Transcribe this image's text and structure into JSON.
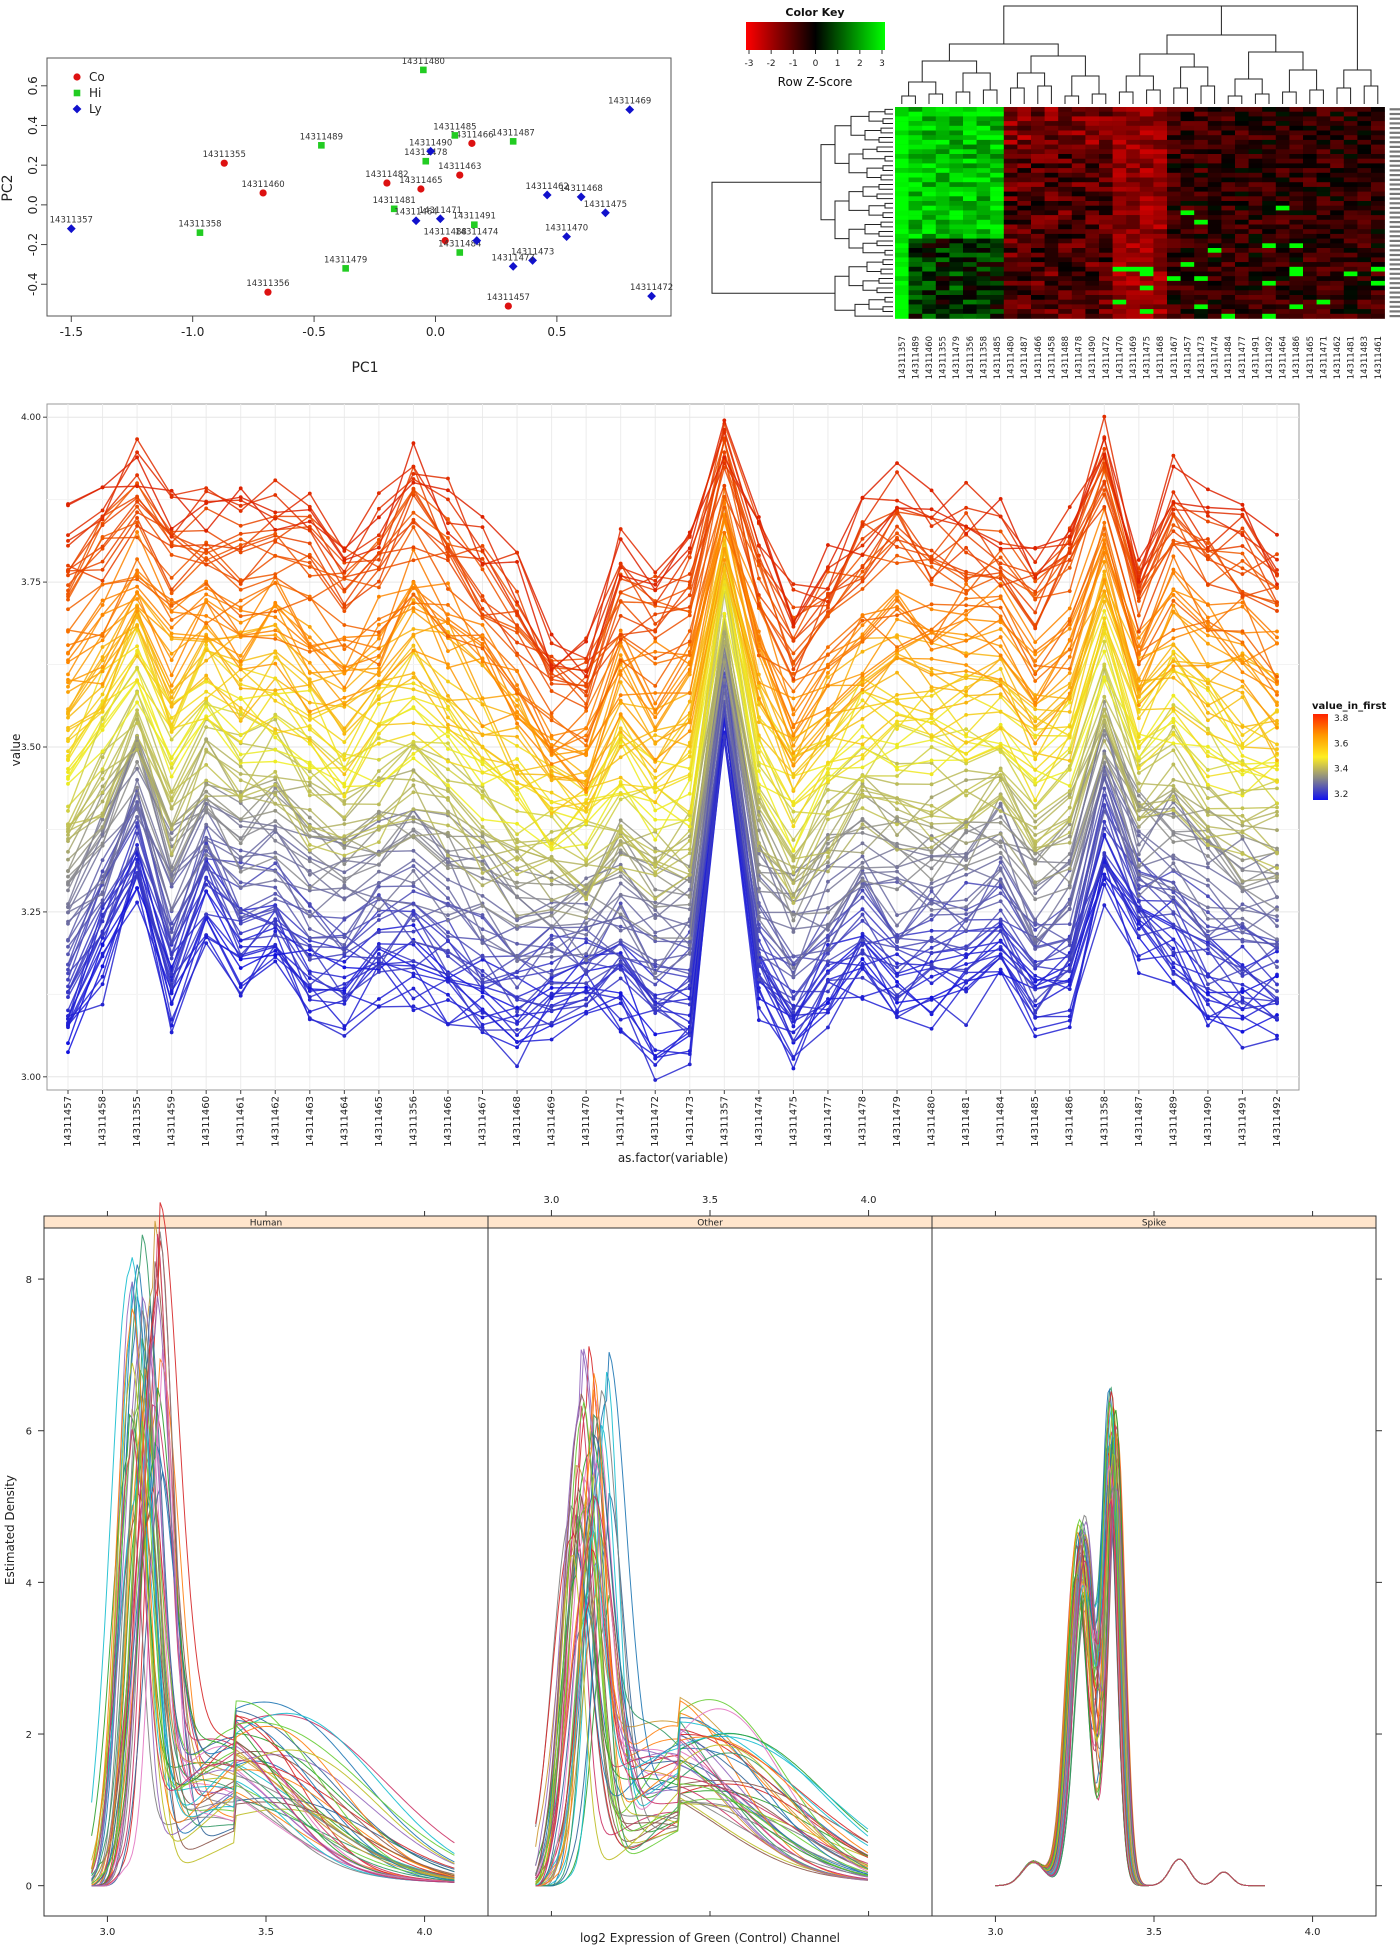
{
  "chart_data": [
    {
      "type": "scatter",
      "xlabel": "PC1",
      "ylabel": "PC2",
      "xlim": [
        -1.6,
        0.97
      ],
      "ylim": [
        -0.56,
        0.74
      ],
      "xticks": [
        "-1.5",
        "-1.0",
        "-0.5",
        "0.0",
        "0.5"
      ],
      "yticks": [
        "-0.4",
        "-0.2",
        "0.0",
        "0.2",
        "0.4",
        "0.6"
      ],
      "legend_position": "top-left",
      "groups": [
        {
          "name": "Co",
          "color": "#dd1111",
          "marker": "circle",
          "points": [
            {
              "label": "14311355",
              "x": -0.87,
              "y": 0.21
            },
            {
              "label": "14311460",
              "x": -0.71,
              "y": 0.06
            },
            {
              "label": "14311356",
              "x": -0.69,
              "y": -0.44
            },
            {
              "label": "14311466",
              "x": 0.15,
              "y": 0.31
            },
            {
              "label": "14311463",
              "x": 0.1,
              "y": 0.15
            },
            {
              "label": "14311465",
              "x": -0.06,
              "y": 0.08
            },
            {
              "label": "14311482",
              "x": -0.2,
              "y": 0.11
            },
            {
              "label": "14311457",
              "x": 0.3,
              "y": -0.51
            },
            {
              "label": "14311488",
              "x": 0.04,
              "y": -0.18
            }
          ]
        },
        {
          "name": "Hi",
          "color": "#22cc22",
          "marker": "square",
          "points": [
            {
              "label": "14311480",
              "x": -0.05,
              "y": 0.68
            },
            {
              "label": "14311489",
              "x": -0.47,
              "y": 0.3
            },
            {
              "label": "14311485",
              "x": 0.08,
              "y": 0.35
            },
            {
              "label": "14311487",
              "x": 0.32,
              "y": 0.32
            },
            {
              "label": "14311478",
              "x": -0.04,
              "y": 0.22
            },
            {
              "label": "14311358",
              "x": -0.97,
              "y": -0.14
            },
            {
              "label": "14311479",
              "x": -0.37,
              "y": -0.32
            },
            {
              "label": "14311481",
              "x": -0.17,
              "y": -0.02
            },
            {
              "label": "14311484",
              "x": 0.1,
              "y": -0.24
            },
            {
              "label": "14311491",
              "x": 0.16,
              "y": -0.1
            }
          ]
        },
        {
          "name": "Ly",
          "color": "#1111cc",
          "marker": "diamond",
          "points": [
            {
              "label": "14311469",
              "x": 0.8,
              "y": 0.48
            },
            {
              "label": "14311490",
              "x": -0.02,
              "y": 0.27
            },
            {
              "label": "14311357",
              "x": -1.5,
              "y": -0.12
            },
            {
              "label": "14311462",
              "x": 0.46,
              "y": 0.05
            },
            {
              "label": "14311468",
              "x": 0.6,
              "y": 0.04
            },
            {
              "label": "14311475",
              "x": 0.7,
              "y": -0.04
            },
            {
              "label": "14311471",
              "x": 0.02,
              "y": -0.07
            },
            {
              "label": "14311474",
              "x": 0.17,
              "y": -0.18
            },
            {
              "label": "14311470",
              "x": 0.54,
              "y": -0.16
            },
            {
              "label": "14311473",
              "x": 0.4,
              "y": -0.28
            },
            {
              "label": "14311477",
              "x": 0.32,
              "y": -0.31
            },
            {
              "label": "14311472",
              "x": 0.89,
              "y": -0.46
            },
            {
              "label": "14311464",
              "x": -0.08,
              "y": -0.08
            }
          ]
        }
      ]
    },
    {
      "type": "heatmap",
      "color_key_title": "Color Key",
      "color_key_label": "Row Z-Score",
      "color_key_ticks": [
        "-3",
        "-2",
        "-1",
        "0",
        "1",
        "2",
        "3"
      ],
      "column_labels": [
        "14311357",
        "14311489",
        "14311460",
        "14311355",
        "14311479",
        "14311356",
        "14311358",
        "14311485",
        "14311480",
        "14311487",
        "14311466",
        "14311458",
        "14311488",
        "14311478",
        "14311490",
        "14311472",
        "14311470",
        "14311469",
        "14311475",
        "14311468",
        "14311467",
        "14311457",
        "14311473",
        "14311474",
        "14311484",
        "14311477",
        "14311491",
        "14311492",
        "14311464",
        "14311486",
        "14311465",
        "14311471",
        "14311462",
        "14311481",
        "14311483",
        "14311461"
      ],
      "rows": 45,
      "note_row_labels": "row labels present but illegible"
    },
    {
      "type": "line",
      "xlabel": "as.factor(variable)",
      "ylabel": "value",
      "ylim": [
        2.98,
        4.02
      ],
      "yticks": [
        "3.00",
        "3.25",
        "3.50",
        "3.75",
        "4.00"
      ],
      "categories": [
        "14311457",
        "14311458",
        "14311355",
        "14311459",
        "14311460",
        "14311461",
        "14311462",
        "14311463",
        "14311464",
        "14311465",
        "14311356",
        "14311466",
        "14311467",
        "14311468",
        "14311469",
        "14311470",
        "14311471",
        "14311472",
        "14311473",
        "14311357",
        "14311474",
        "14311475",
        "14311477",
        "14311478",
        "14311479",
        "14311480",
        "14311481",
        "14311484",
        "14311485",
        "14311486",
        "14311358",
        "14311487",
        "14311489",
        "14311490",
        "14311491",
        "14311492"
      ],
      "legend_title": "value_in_first",
      "legend_ticks": [
        "3.8",
        "3.6",
        "3.4",
        "3.2"
      ],
      "color_scale": [
        "#1111dd",
        "#888888",
        "#eeee22",
        "#ff8800",
        "#dd2200"
      ],
      "series_count": 100,
      "series_first_value_range": [
        3.05,
        3.84
      ],
      "top_series": [
        3.84,
        3.87,
        3.93,
        3.87,
        3.87,
        3.86,
        3.88,
        3.86,
        3.81,
        3.85,
        3.94,
        3.88,
        3.82,
        3.76,
        3.66,
        3.64,
        3.79,
        3.77,
        3.8,
        3.98,
        3.85,
        3.73,
        3.78,
        3.85,
        3.9,
        3.86,
        3.87,
        3.86,
        3.79,
        3.85,
        3.98,
        3.79,
        3.91,
        3.87,
        3.85,
        3.8
      ],
      "bottom_series": [
        3.05,
        3.15,
        3.29,
        3.1,
        3.23,
        3.16,
        3.18,
        3.11,
        3.1,
        3.13,
        3.12,
        3.11,
        3.07,
        3.05,
        3.09,
        3.11,
        3.1,
        3.04,
        3.05,
        3.52,
        3.1,
        3.04,
        3.1,
        3.14,
        3.09,
        3.1,
        3.12,
        3.16,
        3.08,
        3.1,
        3.3,
        3.2,
        3.16,
        3.1,
        3.08,
        3.09
      ]
    },
    {
      "type": "line",
      "subtype": "density",
      "xlabel": "log2 Expression of Green (Control) Channel",
      "ylabel": "Estimated Density",
      "xlim": [
        2.8,
        4.2
      ],
      "xticks": [
        "3.0",
        "3.5",
        "4.0"
      ],
      "ylim": [
        -0.4,
        8.7
      ],
      "yticks": [
        "0",
        "2",
        "4",
        "6",
        "8"
      ],
      "panels": [
        {
          "name": "Human",
          "peak_x": 3.1,
          "peak_y": 8.1,
          "tail_to": 4.1
        },
        {
          "name": "Other",
          "peak_x": 3.1,
          "peak_y": 6.4,
          "tail_to": 4.0
        },
        {
          "name": "Spike",
          "peak_x": 3.37,
          "peak_y": 6.5,
          "secondary_peak_x": 3.28,
          "secondary_peak_y": 4.9,
          "tail_to": 3.85
        }
      ],
      "series_colors": [
        "#1f77b4",
        "#d62728",
        "#2ca02c",
        "#e377c2",
        "#ff7f0e",
        "#8c564b",
        "#17becf",
        "#7f7f7f",
        "#bcbd22",
        "#9467bd",
        "#66cc33",
        "#cc3366",
        "#336699",
        "#cc9933",
        "#339966"
      ]
    }
  ]
}
